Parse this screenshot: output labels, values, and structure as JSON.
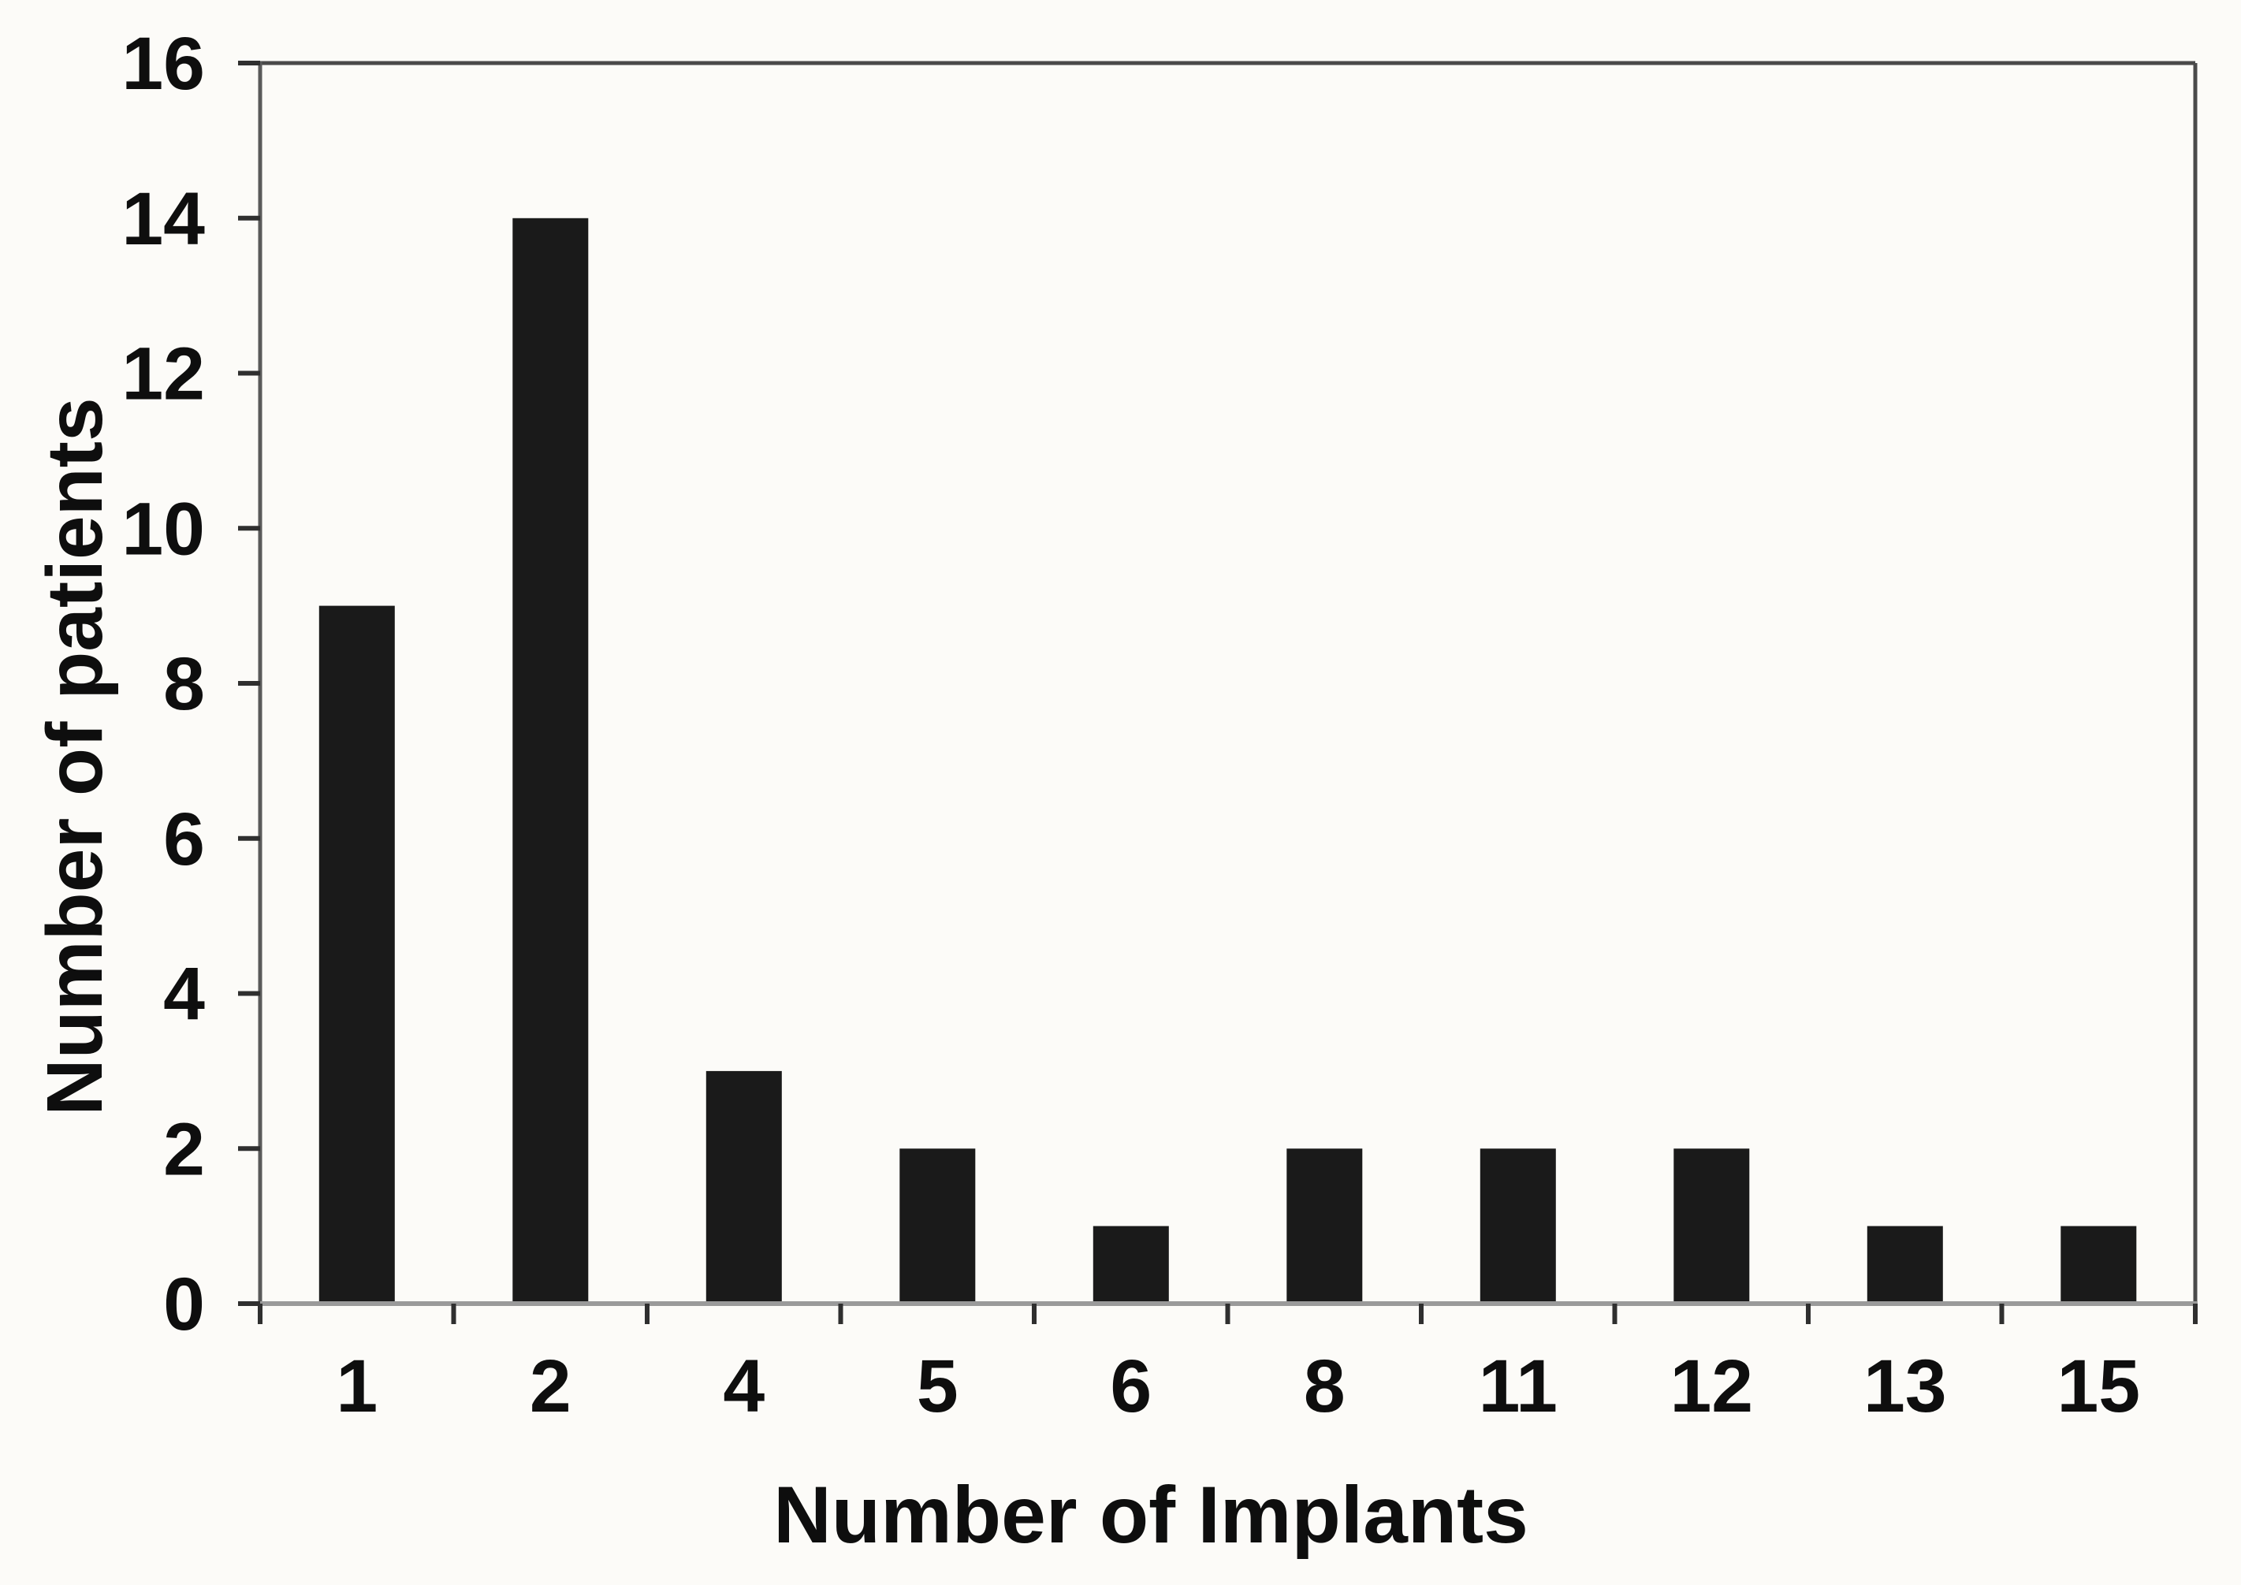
{
  "figure": {
    "background": "#fcfbf8",
    "frame_color": "#4a4a4a",
    "baseline_color": "#9a9a9a",
    "tick_color": "#2f2f2f",
    "text_color": "#0e0e0e"
  },
  "chart_data": {
    "type": "bar",
    "title": "",
    "categories": [
      "1",
      "2",
      "4",
      "5",
      "6",
      "8",
      "11",
      "12",
      "13",
      "15"
    ],
    "values": [
      9,
      14,
      3,
      2,
      1,
      2,
      2,
      2,
      1,
      1
    ],
    "xlabel": "Number of Implants",
    "ylabel": "Number of patients",
    "ylim": [
      0,
      16
    ],
    "yticks": [
      0,
      2,
      4,
      6,
      8,
      10,
      12,
      14,
      16
    ],
    "ytick_labels": [
      "0",
      "2",
      "4",
      "6",
      "8",
      "10",
      "12",
      "14",
      "16"
    ],
    "grid": false,
    "legend": "none",
    "bar_color": "#1a1a1a"
  }
}
